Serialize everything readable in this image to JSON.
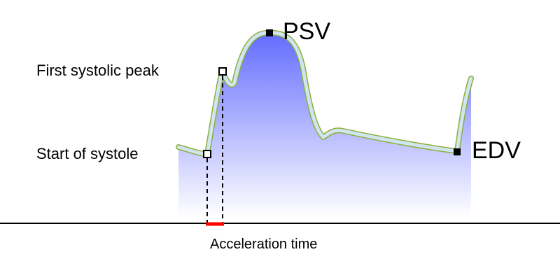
{
  "labels": {
    "start_of_systole": "Start of systole",
    "first_systolic_peak": "First systolic peak",
    "psv": "PSV",
    "edv": "EDV",
    "acceleration_time": "Acceleration time"
  },
  "colors": {
    "fill_top": "#5f68ff",
    "fill_bottom": "#ffffff",
    "curve_outline": "#8fae3c",
    "curve_inner": "#cfe6f0",
    "marker": "#000000",
    "acceleration": "#ff0000",
    "baseline": "#000000"
  }
}
